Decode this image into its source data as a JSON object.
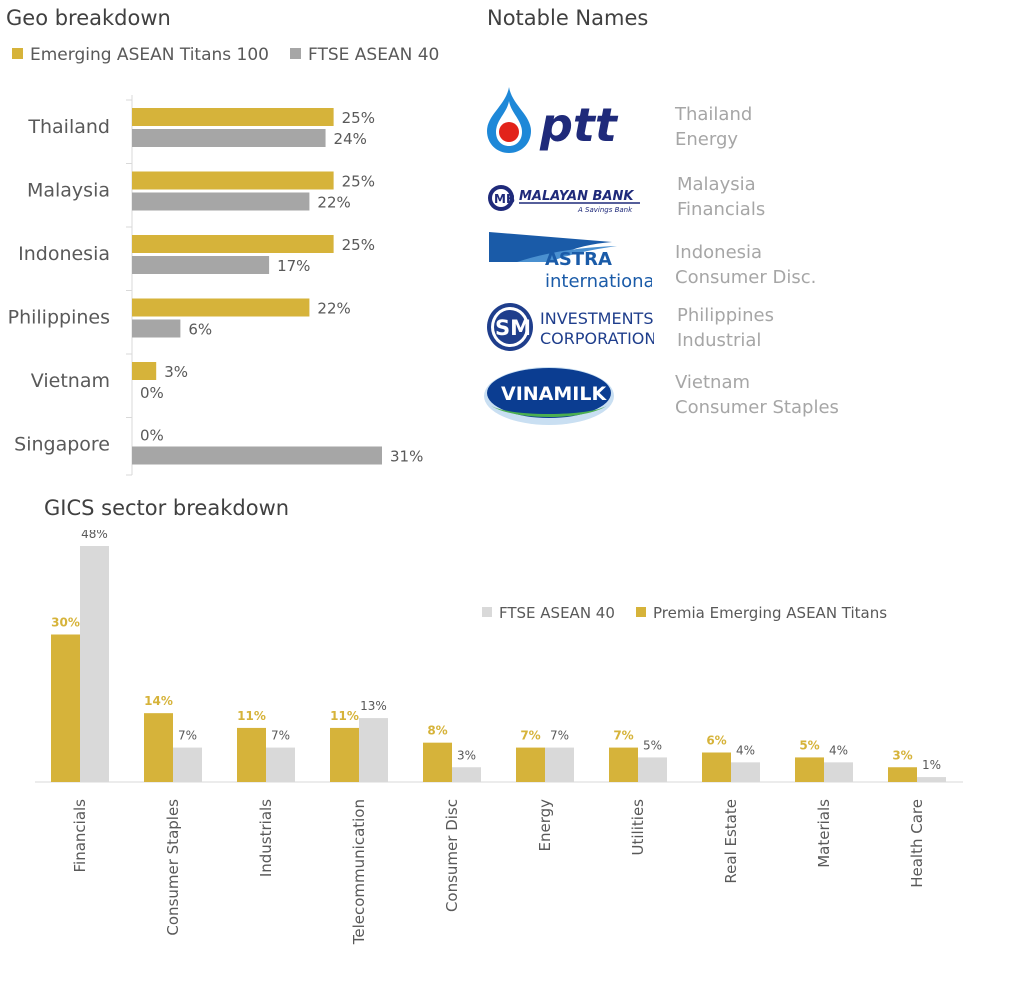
{
  "colors": {
    "gold": "#D6B33A",
    "gray": "#A6A6A6",
    "lightgray": "#D9D9D9",
    "axis": "#D9D9D9"
  },
  "geo": {
    "title": "Geo breakdown",
    "legend": [
      {
        "label": "Emerging ASEAN Titans 100",
        "color": "#D6B33A"
      },
      {
        "label": "FTSE ASEAN 40",
        "color": "#A6A6A6"
      }
    ]
  },
  "notable": {
    "title": "Notable Names",
    "items": [
      {
        "logo": "ptt",
        "logo_text": "ptt",
        "line1": "Thailand",
        "line2": "Energy"
      },
      {
        "logo": "maybank",
        "logo_text": "MALAYAN BANK",
        "logo_sub": "A Savings Bank",
        "line1": "Malaysia",
        "line2": "Financials"
      },
      {
        "logo": "astra",
        "logo_text": "ASTRA",
        "logo_sub": "international",
        "line1": "Indonesia",
        "line2": "Consumer Disc."
      },
      {
        "logo": "sm",
        "logo_text": "INVESTMENTS",
        "logo_sub": "CORPORATION",
        "logo_mark": "SM",
        "line1": "Philippines",
        "line2": "Industrial"
      },
      {
        "logo": "vinamilk",
        "logo_text": "VINAMILK",
        "line1": "Vietnam",
        "line2": "Consumer Staples"
      }
    ]
  },
  "gics": {
    "title": "GICS sector breakdown",
    "legend": [
      {
        "label": "FTSE ASEAN 40",
        "color": "#D9D9D9"
      },
      {
        "label": "Premia Emerging ASEAN Titans",
        "color": "#D6B33A"
      }
    ]
  },
  "chart_data": [
    {
      "type": "bar",
      "orientation": "horizontal",
      "title": "Geo breakdown",
      "categories": [
        "Thailand",
        "Malaysia",
        "Indonesia",
        "Philippines",
        "Vietnam",
        "Singapore"
      ],
      "series": [
        {
          "name": "Emerging ASEAN Titans 100",
          "values": [
            25,
            25,
            25,
            22,
            3,
            0
          ],
          "labels": [
            "25%",
            "25%",
            "25%",
            "22%",
            "3%",
            "0%"
          ]
        },
        {
          "name": "FTSE ASEAN 40",
          "values": [
            24,
            22,
            17,
            6,
            0,
            31
          ],
          "labels": [
            "24%",
            "22%",
            "17%",
            "6%",
            "0%",
            "31%"
          ]
        }
      ],
      "xlim": [
        0,
        33
      ],
      "legend": "top"
    },
    {
      "type": "bar",
      "orientation": "vertical",
      "title": "GICS sector breakdown",
      "categories": [
        "Financials",
        "Consumer Staples",
        "Industrials",
        "Telecommunication",
        "Consumer Disc",
        "Energy",
        "Utilities",
        "Real Estate",
        "Materials",
        "Health Care"
      ],
      "series": [
        {
          "name": "Premia Emerging ASEAN Titans",
          "values": [
            30,
            14,
            11,
            11,
            8,
            7,
            7,
            6,
            5,
            3
          ],
          "labels": [
            "30%",
            "14%",
            "11%",
            "11%",
            "8%",
            "7%",
            "7%",
            "6%",
            "5%",
            "3%"
          ]
        },
        {
          "name": "FTSE ASEAN 40",
          "values": [
            48,
            7,
            7,
            13,
            3,
            7,
            5,
            4,
            4,
            1
          ],
          "labels": [
            "48%",
            "7%",
            "7%",
            "13%",
            "3%",
            "7%",
            "5%",
            "4%",
            "4%",
            "1%"
          ]
        }
      ],
      "ylim": [
        0,
        48
      ],
      "legend": "top-right"
    }
  ]
}
